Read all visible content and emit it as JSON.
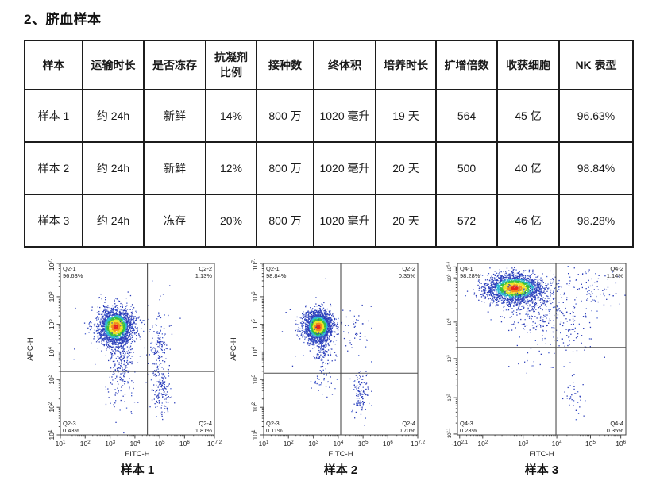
{
  "page": {
    "title": "2、脐血样本"
  },
  "table": {
    "headers": [
      "样本",
      "运输时长",
      "是否冻存",
      "抗凝剂\n比例",
      "接种数",
      "终体积",
      "培养时长",
      "扩增倍数",
      "收获细胞",
      "NK 表型"
    ],
    "rows": [
      [
        "样本 1",
        "约 24h",
        "新鲜",
        "14%",
        "800 万",
        "1020 毫升",
        "19 天",
        "564",
        "45 亿",
        "96.63%"
      ],
      [
        "样本 2",
        "约 24h",
        "新鲜",
        "12%",
        "800 万",
        "1020 毫升",
        "20 天",
        "500",
        "40 亿",
        "98.84%"
      ],
      [
        "样本 3",
        "约 24h",
        "冻存",
        "20%",
        "800 万",
        "1020 毫升",
        "20 天",
        "572",
        "46 亿",
        "98.28%"
      ]
    ]
  },
  "colors": {
    "dot_blue": "#2a3cb8",
    "dot_blue_light": "#4560cf",
    "dot_cyan": "#2fb9cf",
    "dot_green": "#3cc13c",
    "dot_yellow": "#efe328",
    "dot_orange": "#f28b1e",
    "dot_red": "#e8271e",
    "axis": "#444444",
    "gate": "#4d4d4d",
    "label": "#222222"
  },
  "chart_data": [
    {
      "type": "scatter",
      "subtype": "flow-cytometry-density",
      "caption": "样本 1",
      "xlabel": "FITC-H",
      "ylabel": "APC-H",
      "x_scale": "log",
      "y_scale": "log",
      "xlim_log": [
        1,
        7.2
      ],
      "ylim_log": [
        1,
        7.2
      ],
      "x_ticks": [
        {
          "e": "1",
          "f": 0
        },
        {
          "e": "2",
          "f": 0.161
        },
        {
          "e": "3",
          "f": 0.323
        },
        {
          "e": "4",
          "f": 0.484
        },
        {
          "e": "5",
          "f": 0.645
        },
        {
          "e": "6",
          "f": 0.806
        },
        {
          "e": "7.2",
          "f": 1
        }
      ],
      "y_ticks": [
        {
          "e": "1",
          "f": 0
        },
        {
          "e": "2",
          "f": 0.161
        },
        {
          "e": "3",
          "f": 0.323
        },
        {
          "e": "4",
          "f": 0.484
        },
        {
          "e": "5",
          "f": 0.645
        },
        {
          "e": "6",
          "f": 0.806
        },
        {
          "e": "7.2",
          "f": 1
        }
      ],
      "y_tick_font": 8.5,
      "gate": {
        "x": 0.565,
        "y": 0.37
      },
      "quadrants": {
        "tl": {
          "name": "Q2-1",
          "value": "96.63%"
        },
        "tr": {
          "name": "Q2-2",
          "value": "1.13%"
        },
        "bl": {
          "name": "Q2-3",
          "value": "0.43%"
        },
        "br": {
          "name": "Q2-4",
          "value": "1.81%"
        }
      },
      "seed": 7,
      "clusters": [
        {
          "cx": 0.36,
          "cy": 0.63,
          "sx": 0.055,
          "sy": 0.052,
          "n": 2000,
          "hot": true
        },
        {
          "cx": 0.36,
          "cy": 0.63,
          "sx": 0.16,
          "sy": 0.14,
          "n": 55,
          "hot": false
        },
        {
          "cx": 0.4,
          "cy": 0.47,
          "sx": 0.042,
          "sy": 0.09,
          "n": 240,
          "hot": false
        },
        {
          "cx": 0.4,
          "cy": 0.26,
          "sx": 0.05,
          "sy": 0.07,
          "n": 55,
          "hot": false
        },
        {
          "cx": 0.645,
          "cy": 0.52,
          "sx": 0.03,
          "sy": 0.09,
          "n": 120,
          "hot": false
        },
        {
          "cx": 0.655,
          "cy": 0.27,
          "sx": 0.028,
          "sy": 0.08,
          "n": 155,
          "hot": false
        }
      ]
    },
    {
      "type": "scatter",
      "subtype": "flow-cytometry-density",
      "caption": "样本 2",
      "xlabel": "FITC-H",
      "ylabel": "APC-H",
      "x_scale": "log",
      "y_scale": "log",
      "xlim_log": [
        1,
        7.2
      ],
      "ylim_log": [
        1,
        7.2
      ],
      "x_ticks": [
        {
          "e": "1",
          "f": 0
        },
        {
          "e": "2",
          "f": 0.161
        },
        {
          "e": "3",
          "f": 0.323
        },
        {
          "e": "4",
          "f": 0.484
        },
        {
          "e": "5",
          "f": 0.645
        },
        {
          "e": "6",
          "f": 0.806
        },
        {
          "e": "7.2",
          "f": 1
        }
      ],
      "y_ticks": [
        {
          "e": "1",
          "f": 0
        },
        {
          "e": "2",
          "f": 0.161
        },
        {
          "e": "3",
          "f": 0.323
        },
        {
          "e": "4",
          "f": 0.484
        },
        {
          "e": "5",
          "f": 0.645
        },
        {
          "e": "6",
          "f": 0.806
        },
        {
          "e": "7.2",
          "f": 1
        }
      ],
      "y_tick_font": 8.5,
      "gate": {
        "x": 0.5,
        "y": 0.36
      },
      "quadrants": {
        "tl": {
          "name": "Q2-1",
          "value": "98.84%"
        },
        "tr": {
          "name": "Q2-2",
          "value": "0.35%"
        },
        "bl": {
          "name": "Q2-3",
          "value": "0.11%"
        },
        "br": {
          "name": "Q2-4",
          "value": "0.70%"
        }
      },
      "seed": 13,
      "clusters": [
        {
          "cx": 0.355,
          "cy": 0.63,
          "sx": 0.045,
          "sy": 0.045,
          "n": 2100,
          "hot": true
        },
        {
          "cx": 0.355,
          "cy": 0.62,
          "sx": 0.13,
          "sy": 0.12,
          "n": 35,
          "hot": false
        },
        {
          "cx": 0.385,
          "cy": 0.49,
          "sx": 0.03,
          "sy": 0.075,
          "n": 130,
          "hot": false
        },
        {
          "cx": 0.4,
          "cy": 0.3,
          "sx": 0.045,
          "sy": 0.06,
          "n": 22,
          "hot": false
        },
        {
          "cx": 0.6,
          "cy": 0.6,
          "sx": 0.05,
          "sy": 0.07,
          "n": 40,
          "hot": false
        },
        {
          "cx": 0.63,
          "cy": 0.235,
          "sx": 0.026,
          "sy": 0.06,
          "n": 115,
          "hot": false
        }
      ]
    },
    {
      "type": "scatter",
      "subtype": "flow-cytometry-density",
      "caption": "样本 3",
      "xlabel": "FITC-H",
      "ylabel": "",
      "x_scale": "biexponential",
      "y_scale": "biexponential",
      "xlim_log": [
        -2.1,
        6
      ],
      "ylim_log": [
        -2.1,
        5.4
      ],
      "x_ticks": [
        {
          "e": "2.1",
          "f": 0.013,
          "neg": true
        },
        {
          "e": "2",
          "f": 0.15
        },
        {
          "e": "3",
          "f": 0.39
        },
        {
          "e": "4",
          "f": 0.59
        },
        {
          "e": "5",
          "f": 0.79
        },
        {
          "e": "6",
          "f": 0.97
        }
      ],
      "y_ticks": [
        {
          "e": "5.4",
          "f": 0.98
        },
        {
          "e": "5",
          "f": 0.916
        },
        {
          "e": "4",
          "f": 0.658
        },
        {
          "e": "3",
          "f": 0.445
        },
        {
          "e": "2",
          "f": 0.217
        },
        {
          "e": "2.1",
          "f": 0.005,
          "neg": true
        }
      ],
      "y_tick_font": 6,
      "gate": {
        "x": 0.585,
        "y": 0.51
      },
      "quadrants": {
        "tl": {
          "name": "Q4-1",
          "value": "98.28%"
        },
        "tr": {
          "name": "Q4-2",
          "value": "1.14%"
        },
        "bl": {
          "name": "Q4-3",
          "value": "0.23%"
        },
        "br": {
          "name": "Q4-4",
          "value": "0.35%"
        }
      },
      "seed": 21,
      "clusters": [
        {
          "cx": 0.34,
          "cy": 0.855,
          "sx": 0.085,
          "sy": 0.042,
          "n": 2200,
          "hot": true
        },
        {
          "cx": 0.42,
          "cy": 0.78,
          "sx": 0.11,
          "sy": 0.05,
          "n": 280,
          "hot": false
        },
        {
          "cx": 0.5,
          "cy": 0.64,
          "sx": 0.1,
          "sy": 0.06,
          "n": 90,
          "hot": false
        },
        {
          "cx": 0.78,
          "cy": 0.85,
          "sx": 0.09,
          "sy": 0.06,
          "n": 90,
          "hot": false
        },
        {
          "cx": 0.7,
          "cy": 0.6,
          "sx": 0.07,
          "sy": 0.09,
          "n": 60,
          "hot": false
        },
        {
          "cx": 0.7,
          "cy": 0.23,
          "sx": 0.04,
          "sy": 0.06,
          "n": 35,
          "hot": false
        },
        {
          "cx": 0.48,
          "cy": 0.44,
          "sx": 0.09,
          "sy": 0.05,
          "n": 20,
          "hot": false
        }
      ]
    }
  ]
}
